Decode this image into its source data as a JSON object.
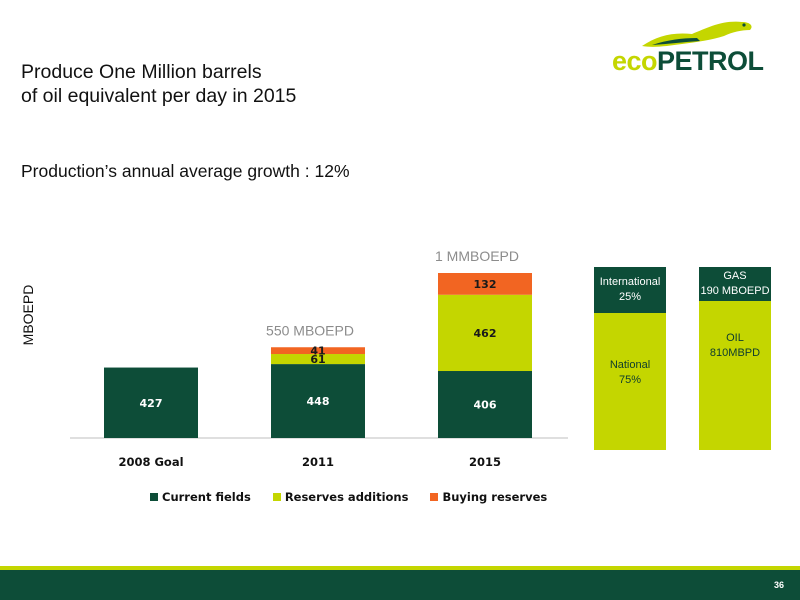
{
  "slide": {
    "title": "Produce  One  Million barrels\nof oil equivalent per day in 2015",
    "subtitle": "Production’s annual average growth : 12%",
    "page_number": "36"
  },
  "logo": {
    "text_eco": "eco",
    "text_petrol": "PETROL",
    "icon": "iguana-icon",
    "colors": {
      "eco": "#c4d600",
      "petrol": "#0d4d38"
    }
  },
  "chart_data": {
    "type": "bar",
    "stacked": true,
    "categories": [
      "2008 Goal",
      "2011",
      "2015"
    ],
    "series": [
      {
        "name": "Current fields",
        "color": "#0d4d38",
        "values": [
          427,
          448,
          406
        ]
      },
      {
        "name": "Reserves additions",
        "color": "#c4d600",
        "values": [
          null,
          61,
          462
        ]
      },
      {
        "name": "Buying reserves",
        "color": "#f26522",
        "values": [
          null,
          41,
          132
        ]
      }
    ],
    "totals_labels": [
      "",
      "550 MBOEPD",
      "1 MMBOEPD"
    ],
    "ylabel": "MBOEPD",
    "ylim": [
      0,
      1000
    ],
    "legend_position": "bottom",
    "grid": false
  },
  "split_2015": {
    "left": {
      "top_label": "International",
      "top_value": "25%",
      "bottom_label": "National",
      "bottom_value": "75%"
    },
    "right": {
      "top_label": "GAS",
      "top_value": "190 MBOEPD",
      "bottom_label": "OIL",
      "bottom_value": "810MBPD"
    }
  }
}
